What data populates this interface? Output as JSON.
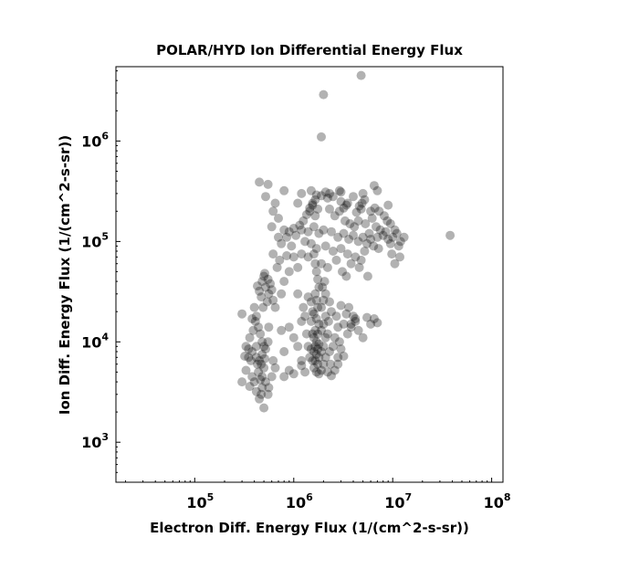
{
  "chart_data": {
    "type": "scatter",
    "title": "POLAR/HYD  Ion Differential Energy Flux",
    "xlabel": "Electron Diff. Energy Flux (1/(cm^2-s-sr))",
    "ylabel": "Ion Diff. Energy Flux (1/(cm^2-s-sr))",
    "x_scale": "log",
    "y_scale": "log",
    "xlim": [
      16000,
      130000000
    ],
    "ylim": [
      400,
      5500000
    ],
    "x_ticks": [
      {
        "value": 100000,
        "base": "10",
        "exp": "5"
      },
      {
        "value": 1000000,
        "base": "10",
        "exp": "6"
      },
      {
        "value": 10000000,
        "base": "10",
        "exp": "7"
      },
      {
        "value": 100000000,
        "base": "10",
        "exp": "8"
      }
    ],
    "y_ticks": [
      {
        "value": 1000,
        "base": "10",
        "exp": "3"
      },
      {
        "value": 10000,
        "base": "10",
        "exp": "4"
      },
      {
        "value": 100000,
        "base": "10",
        "exp": "5"
      },
      {
        "value": 1000000,
        "base": "10",
        "exp": "6"
      }
    ],
    "grid": false,
    "marker_color": "#000000",
    "marker_alpha": 0.3,
    "series": [
      {
        "points": [
          [
            4800000,
            4500000
          ],
          [
            2000000,
            2900000
          ],
          [
            1900000,
            1100000
          ],
          [
            38000000,
            115000
          ],
          [
            450000,
            390000
          ],
          [
            550000,
            370000
          ],
          [
            520000,
            280000
          ],
          [
            800000,
            320000
          ],
          [
            1200000,
            300000
          ],
          [
            6500000,
            360000
          ],
          [
            7000000,
            320000
          ],
          [
            9000000,
            230000
          ],
          [
            3000000,
            310000
          ],
          [
            4000000,
            280000
          ],
          [
            3500000,
            240000
          ],
          [
            2200000,
            270000
          ],
          [
            1500000,
            320000
          ],
          [
            1700000,
            290000
          ],
          [
            5000000,
            300000
          ],
          [
            1100000,
            240000
          ],
          [
            650000,
            240000
          ],
          [
            700000,
            170000
          ],
          [
            620000,
            200000
          ],
          [
            800000,
            130000
          ],
          [
            900000,
            125000
          ],
          [
            1000000,
            135000
          ],
          [
            1200000,
            130000
          ],
          [
            1400000,
            125000
          ],
          [
            1600000,
            140000
          ],
          [
            1800000,
            120000
          ],
          [
            2000000,
            130000
          ],
          [
            2400000,
            125000
          ],
          [
            2800000,
            110000
          ],
          [
            3200000,
            120000
          ],
          [
            3600000,
            105000
          ],
          [
            4000000,
            115000
          ],
          [
            4500000,
            100000
          ],
          [
            5000000,
            110000
          ],
          [
            5500000,
            95000
          ],
          [
            6000000,
            105000
          ],
          [
            7000000,
            110000
          ],
          [
            8000000,
            115000
          ],
          [
            9000000,
            105000
          ],
          [
            10000000,
            110000
          ],
          [
            11000000,
            120000
          ],
          [
            12000000,
            100000
          ],
          [
            11500000,
            90000
          ],
          [
            10500000,
            130000
          ],
          [
            9500000,
            95000
          ],
          [
            8500000,
            125000
          ],
          [
            13000000,
            110000
          ],
          [
            1300000,
            100000
          ],
          [
            1500000,
            95000
          ],
          [
            1700000,
            85000
          ],
          [
            2100000,
            90000
          ],
          [
            2500000,
            80000
          ],
          [
            3000000,
            85000
          ],
          [
            3500000,
            75000
          ],
          [
            4200000,
            70000
          ],
          [
            4800000,
            65000
          ],
          [
            5200000,
            80000
          ],
          [
            3800000,
            60000
          ],
          [
            2700000,
            65000
          ],
          [
            600000,
            140000
          ],
          [
            700000,
            110000
          ],
          [
            750000,
            95000
          ],
          [
            850000,
            110000
          ],
          [
            950000,
            90000
          ],
          [
            1050000,
            115000
          ],
          [
            1150000,
            145000
          ],
          [
            1250000,
            160000
          ],
          [
            1350000,
            185000
          ],
          [
            1450000,
            200000
          ],
          [
            1550000,
            230000
          ],
          [
            1650000,
            180000
          ],
          [
            1750000,
            210000
          ],
          [
            2300000,
            210000
          ],
          [
            2600000,
            180000
          ],
          [
            2900000,
            200000
          ],
          [
            3300000,
            160000
          ],
          [
            3700000,
            150000
          ],
          [
            4100000,
            140000
          ],
          [
            4500000,
            160000
          ],
          [
            5300000,
            150000
          ],
          [
            6200000,
            170000
          ],
          [
            6800000,
            140000
          ],
          [
            7500000,
            130000
          ],
          [
            5800000,
            120000
          ],
          [
            6400000,
            90000
          ],
          [
            7200000,
            85000
          ],
          [
            9800000,
            75000
          ],
          [
            10500000,
            60000
          ],
          [
            11800000,
            70000
          ],
          [
            3100000,
            50000
          ],
          [
            3400000,
            45000
          ],
          [
            4600000,
            55000
          ],
          [
            5600000,
            45000
          ],
          [
            2200000,
            55000
          ],
          [
            1900000,
            60000
          ],
          [
            1600000,
            75000
          ],
          [
            1400000,
            70000
          ],
          [
            1200000,
            75000
          ],
          [
            1000000,
            70000
          ],
          [
            850000,
            72000
          ],
          [
            720000,
            65000
          ],
          [
            620000,
            75000
          ],
          [
            680000,
            55000
          ],
          [
            900000,
            50000
          ],
          [
            1100000,
            55000
          ],
          [
            800000,
            40000
          ],
          [
            750000,
            30000
          ],
          [
            480000,
            40000
          ],
          [
            520000,
            35000
          ],
          [
            560000,
            30000
          ],
          [
            450000,
            32000
          ],
          [
            500000,
            45000
          ],
          [
            540000,
            25000
          ],
          [
            580000,
            38000
          ],
          [
            470000,
            28000
          ],
          [
            510000,
            48000
          ],
          [
            550000,
            42000
          ],
          [
            600000,
            33000
          ],
          [
            620000,
            26000
          ],
          [
            430000,
            36000
          ],
          [
            490000,
            22000
          ],
          [
            650000,
            22000
          ],
          [
            1650000,
            60000
          ],
          [
            1700000,
            50000
          ],
          [
            1750000,
            42000
          ],
          [
            1800000,
            35000
          ],
          [
            1650000,
            30000
          ],
          [
            1700000,
            26000
          ],
          [
            1750000,
            22000
          ],
          [
            1600000,
            19000
          ],
          [
            1700000,
            17000
          ],
          [
            1800000,
            15000
          ],
          [
            1650000,
            13000
          ],
          [
            1750000,
            12000
          ],
          [
            1600000,
            11000
          ],
          [
            1700000,
            10000
          ],
          [
            1800000,
            9500
          ],
          [
            1650000,
            9000
          ],
          [
            1750000,
            8500
          ],
          [
            1600000,
            8000
          ],
          [
            1700000,
            7500
          ],
          [
            1800000,
            7000
          ],
          [
            1650000,
            6500
          ],
          [
            1750000,
            6000
          ],
          [
            1600000,
            5500
          ],
          [
            1700000,
            5000
          ],
          [
            1800000,
            4800
          ],
          [
            1900000,
            5200
          ],
          [
            2000000,
            6000
          ],
          [
            2100000,
            7000
          ],
          [
            1900000,
            8000
          ],
          [
            2000000,
            9000
          ],
          [
            2100000,
            11000
          ],
          [
            1900000,
            13000
          ],
          [
            2000000,
            15000
          ],
          [
            2100000,
            18000
          ],
          [
            1900000,
            22000
          ],
          [
            2000000,
            26000
          ],
          [
            2100000,
            30000
          ],
          [
            1950000,
            35000
          ],
          [
            2050000,
            40000
          ],
          [
            1550000,
            6500
          ],
          [
            1500000,
            8500
          ],
          [
            1550000,
            12000
          ],
          [
            1500000,
            16000
          ],
          [
            1550000,
            20000
          ],
          [
            1500000,
            25000
          ],
          [
            2200000,
            12000
          ],
          [
            2300000,
            8000
          ],
          [
            2250000,
            16000
          ],
          [
            2400000,
            20000
          ],
          [
            2300000,
            25000
          ],
          [
            2500000,
            9000
          ],
          [
            2600000,
            11000
          ],
          [
            2350000,
            6000
          ],
          [
            2200000,
            5000
          ],
          [
            1400000,
            9000
          ],
          [
            1450000,
            7000
          ],
          [
            1350000,
            12000
          ],
          [
            1300000,
            18000
          ],
          [
            1400000,
            28000
          ],
          [
            1250000,
            22000
          ],
          [
            1100000,
            30000
          ],
          [
            1200000,
            16000
          ],
          [
            2800000,
            14000
          ],
          [
            2700000,
            18000
          ],
          [
            3000000,
            23000
          ],
          [
            2900000,
            10000
          ],
          [
            2800000,
            7000
          ],
          [
            3200000,
            15000
          ],
          [
            3400000,
            19000
          ],
          [
            3600000,
            22000
          ],
          [
            4000000,
            18000
          ],
          [
            4200000,
            16000
          ],
          [
            3800000,
            14000
          ],
          [
            1000000,
            11000
          ],
          [
            1100000,
            9000
          ],
          [
            900000,
            14000
          ],
          [
            800000,
            8000
          ],
          [
            750000,
            13000
          ],
          [
            1200000,
            6500
          ],
          [
            1300000,
            5000
          ],
          [
            400000,
            22000
          ],
          [
            420000,
            18000
          ],
          [
            380000,
            17000
          ],
          [
            440000,
            14000
          ],
          [
            460000,
            12000
          ],
          [
            480000,
            10000
          ],
          [
            500000,
            9000
          ],
          [
            420000,
            9000
          ],
          [
            380000,
            8000
          ],
          [
            350000,
            7000
          ],
          [
            420000,
            7000
          ],
          [
            450000,
            6500
          ],
          [
            480000,
            7500
          ],
          [
            520000,
            8500
          ],
          [
            550000,
            10000
          ],
          [
            560000,
            14000
          ],
          [
            470000,
            6000
          ],
          [
            500000,
            5500
          ],
          [
            440000,
            5000
          ],
          [
            480000,
            4500
          ],
          [
            460000,
            4200
          ],
          [
            520000,
            4000
          ],
          [
            400000,
            4000
          ],
          [
            380000,
            4500
          ],
          [
            300000,
            4000
          ],
          [
            330000,
            5200
          ],
          [
            320000,
            7200
          ],
          [
            360000,
            3600
          ],
          [
            420000,
            3200
          ],
          [
            470000,
            3000
          ],
          [
            550000,
            3000
          ],
          [
            500000,
            2200
          ],
          [
            480000,
            3500
          ],
          [
            450000,
            2700
          ],
          [
            560000,
            3500
          ],
          [
            600000,
            4500
          ],
          [
            650000,
            5500
          ],
          [
            620000,
            6500
          ],
          [
            350000,
            8500
          ],
          [
            330000,
            9000
          ],
          [
            360000,
            11000
          ],
          [
            390000,
            13000
          ],
          [
            410000,
            16000
          ],
          [
            300000,
            19000
          ],
          [
            370000,
            6500
          ],
          [
            430000,
            6000
          ],
          [
            510000,
            6800
          ],
          [
            800000,
            4500
          ],
          [
            1000000,
            4800
          ],
          [
            1200000,
            5800
          ],
          [
            900000,
            5200
          ],
          [
            2800000,
            6000
          ],
          [
            3000000,
            8500
          ],
          [
            3500000,
            12000
          ],
          [
            3800000,
            15000
          ],
          [
            4200000,
            17000
          ],
          [
            6000000,
            15000
          ],
          [
            6500000,
            17000
          ],
          [
            7000000,
            15500
          ],
          [
            5500000,
            17500
          ],
          [
            4500000,
            13000
          ],
          [
            5000000,
            11000
          ],
          [
            2600000,
            5200
          ],
          [
            3200000,
            7200
          ],
          [
            2400000,
            4600
          ],
          [
            4800000,
            210000
          ],
          [
            4900000,
            240000
          ],
          [
            5200000,
            260000
          ],
          [
            4300000,
            195000
          ],
          [
            4600000,
            225000
          ],
          [
            3400000,
            230000
          ],
          [
            3200000,
            215000
          ],
          [
            3000000,
            250000
          ],
          [
            2900000,
            320000
          ],
          [
            2500000,
            280000
          ],
          [
            2300000,
            300000
          ],
          [
            2100000,
            310000
          ],
          [
            1900000,
            285000
          ],
          [
            1650000,
            260000
          ],
          [
            1550000,
            240000
          ],
          [
            1450000,
            215000
          ],
          [
            6000000,
            200000
          ],
          [
            6600000,
            215000
          ],
          [
            7300000,
            200000
          ],
          [
            8200000,
            180000
          ],
          [
            8800000,
            160000
          ],
          [
            9500000,
            150000
          ]
        ]
      }
    ]
  }
}
